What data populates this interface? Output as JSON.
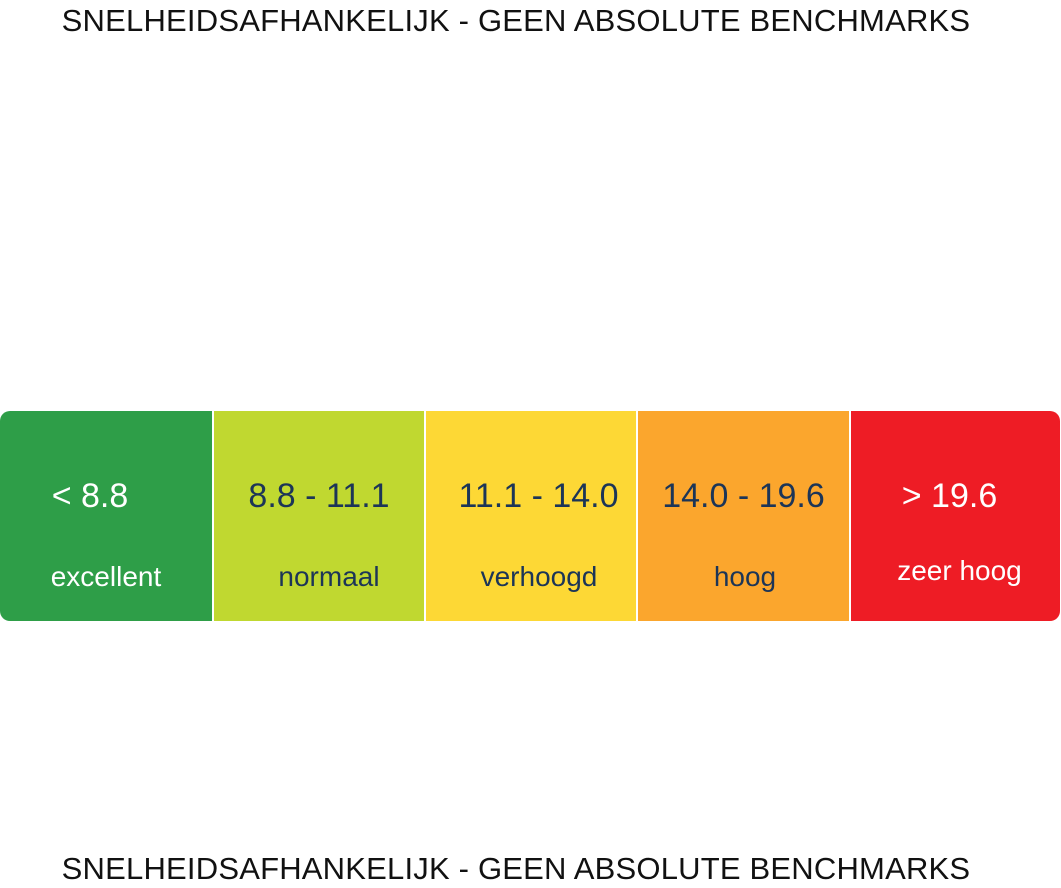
{
  "header": {
    "caption": "SNELHEIDSAFHANKELIJK - GEEN ABSOLUTE BENCHMARKS"
  },
  "scale": {
    "segments": [
      {
        "range": "< 8.8",
        "label": "excellent",
        "color": "#2e9e48",
        "text_color": "#ffffff"
      },
      {
        "range": "8.8 - 11.1",
        "label": "normaal",
        "color": "#c0d830",
        "text_color": "#1c3557"
      },
      {
        "range": "11.1 - 14.0",
        "label": "verhoogd",
        "color": "#fdd835",
        "text_color": "#1c3557"
      },
      {
        "range": "14.0 - 19.6",
        "label": "hoog",
        "color": "#fba62d",
        "text_color": "#1c3557"
      },
      {
        "range": "> 19.6",
        "label": "zeer hoog",
        "color": "#ee1c25",
        "text_color": "#ffffff"
      }
    ]
  },
  "footer": {
    "caption": "SNELHEIDSAFHANKELIJK - GEEN ABSOLUTE BENCHMARKS"
  }
}
